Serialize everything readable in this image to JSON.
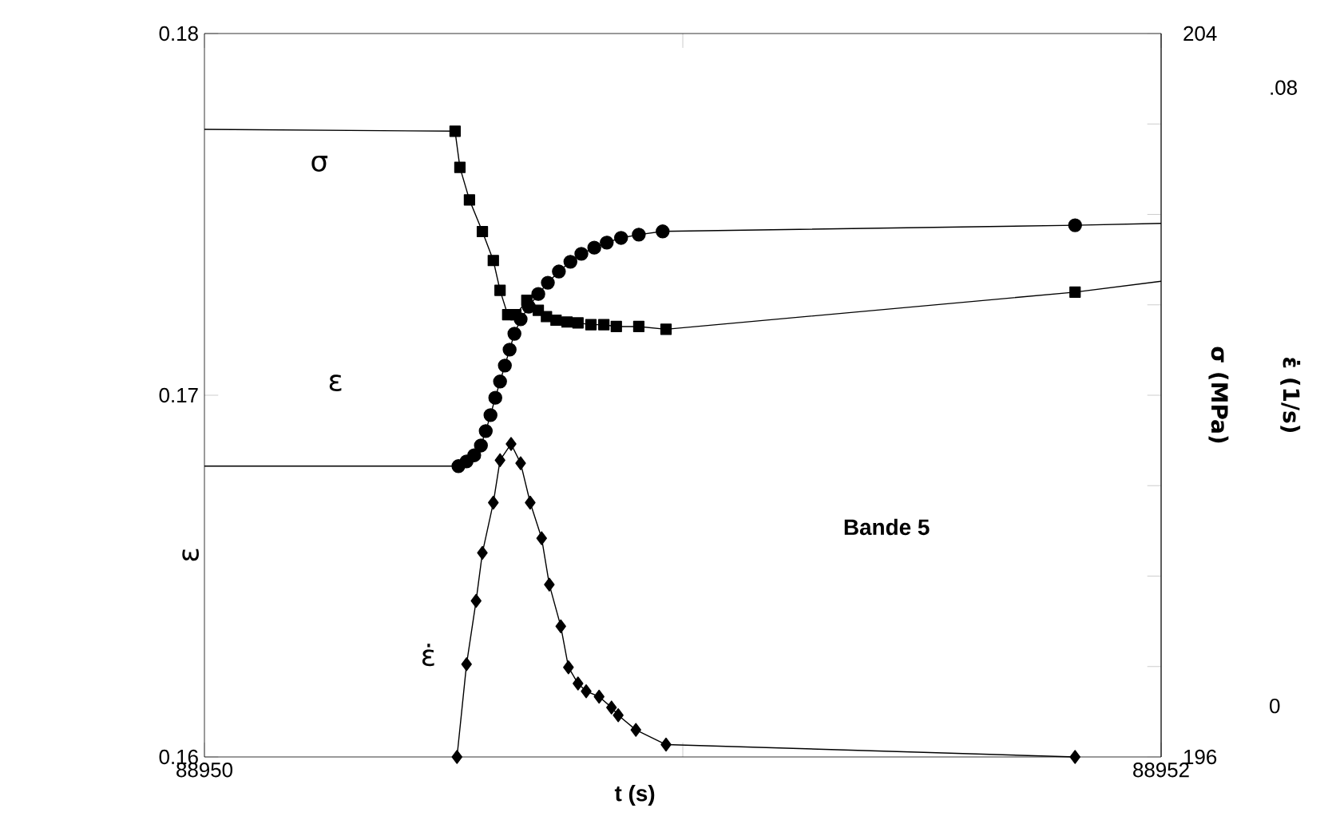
{
  "chart_data": {
    "type": "line",
    "xlabel": "t (s)",
    "ylabel": "ε",
    "y2label": "σ (MPa)",
    "y3label": "ε̇ (1/s)",
    "annotations": [
      "Bande 5"
    ],
    "xlim": [
      88950,
      88952
    ],
    "xticks": [
      {
        "value": 88950,
        "label": "88950"
      },
      {
        "value": 88951,
        "label": null
      },
      {
        "value": 88952,
        "label": "88952"
      }
    ],
    "ylim": [
      0.16,
      0.18
    ],
    "yticks": [
      0.16,
      0.17,
      0.18
    ],
    "y2lim": [
      196,
      204
    ],
    "y2ticks": [
      {
        "value": 196,
        "label": "196"
      },
      {
        "value": 197,
        "label": null
      },
      {
        "value": 198,
        "label": null
      },
      {
        "value": 199,
        "label": null
      },
      {
        "value": 200,
        "label": null
      },
      {
        "value": 201,
        "label": null
      },
      {
        "value": 202,
        "label": null
      },
      {
        "value": 203,
        "label": null
      },
      {
        "value": 204,
        "label": "204"
      }
    ],
    "y3lim": [
      -0.0066,
      0.087
    ],
    "y3ticks": [
      {
        "value": 0,
        "label": "0"
      },
      {
        "value": 0.08,
        "label": ".08"
      }
    ],
    "line_style": "solid",
    "series": [
      {
        "name": "σ",
        "axis": "y2",
        "marker": "square",
        "color": "#000000",
        "x": [
          88950,
          88950.524,
          88950.534,
          88950.554,
          88950.581,
          88950.604,
          88950.618,
          88950.634,
          88950.651,
          88950.674,
          88950.698,
          88950.715,
          88950.735,
          88950.758,
          88950.781,
          88950.808,
          88950.835,
          88950.861,
          88950.908,
          88950.965,
          88951.82,
          88952
        ],
        "values": [
          202.94,
          202.92,
          202.52,
          202.16,
          201.81,
          201.49,
          201.16,
          200.89,
          200.89,
          201.05,
          200.94,
          200.87,
          200.83,
          200.81,
          200.8,
          200.78,
          200.78,
          200.76,
          200.76,
          200.73,
          201.14,
          201.26
        ]
      },
      {
        "name": "ε",
        "axis": "y",
        "marker": "circle",
        "color": "#000000",
        "x": [
          88950,
          88950.531,
          88950.548,
          88950.564,
          88950.578,
          88950.588,
          88950.598,
          88950.608,
          88950.618,
          88950.628,
          88950.638,
          88950.648,
          88950.661,
          88950.678,
          88950.698,
          88950.718,
          88950.741,
          88950.765,
          88950.788,
          88950.815,
          88950.841,
          88950.871,
          88950.908,
          88950.958,
          88951.82,
          88952
        ],
        "values": [
          0.16804,
          0.16804,
          0.16817,
          0.16834,
          0.16861,
          0.16901,
          0.16945,
          0.16993,
          0.17038,
          0.17082,
          0.17126,
          0.1717,
          0.1721,
          0.17245,
          0.1728,
          0.17311,
          0.17342,
          0.17369,
          0.17391,
          0.17408,
          0.17422,
          0.17435,
          0.17444,
          0.17453,
          0.1747,
          0.17475
        ]
      },
      {
        "name": "ε̇",
        "axis": "y3",
        "marker": "diamond",
        "color": "#000000",
        "x": [
          88950.528,
          88950.548,
          88950.568,
          88950.581,
          88950.604,
          88950.618,
          88950.641,
          88950.661,
          88950.681,
          88950.705,
          88950.721,
          88950.745,
          88950.761,
          88950.781,
          88950.798,
          88950.825,
          88950.851,
          88950.865,
          88950.902,
          88950.965,
          88951.82
        ],
        "values": [
          -0.0066,
          0.0054,
          0.0136,
          0.0198,
          0.0263,
          0.0318,
          0.0339,
          0.0314,
          0.0263,
          0.0217,
          0.0157,
          0.0103,
          0.005,
          0.0029,
          0.0019,
          0.0012,
          -0.0002,
          -0.0012,
          -0.0031,
          -0.005,
          -0.0066
        ]
      }
    ]
  }
}
